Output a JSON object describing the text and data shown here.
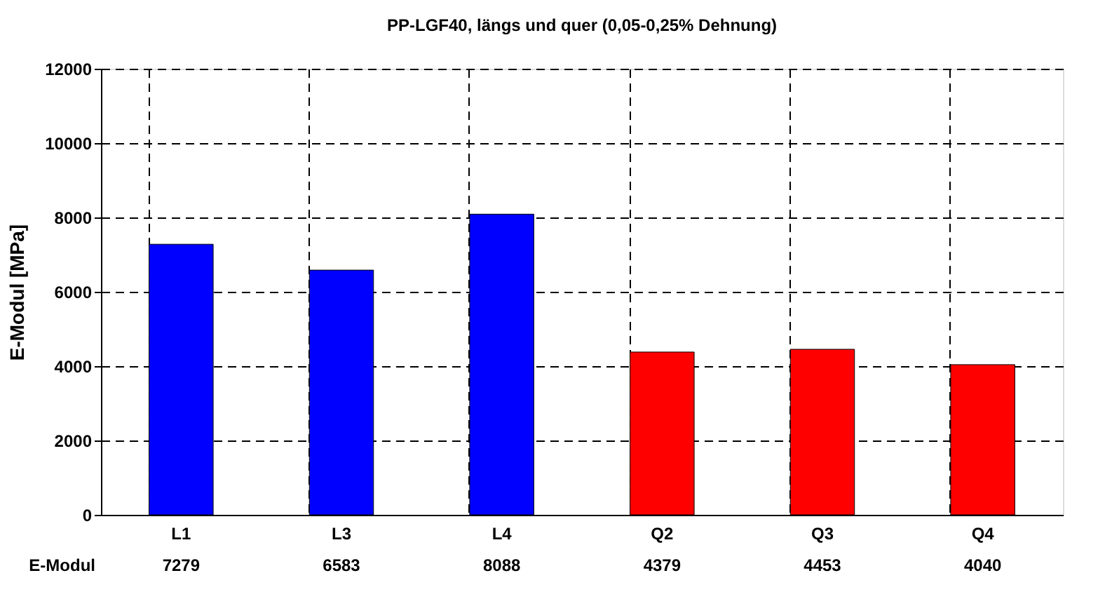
{
  "chart_data": {
    "type": "bar",
    "title": "PP-LGF40, längs und quer (0,05-0,25% Dehnung)",
    "ylabel": "E-Modul [MPa]",
    "categories": [
      "L1",
      "L3",
      "L4",
      "Q2",
      "Q3",
      "Q4"
    ],
    "series": [
      {
        "name": "E-Modul",
        "values": [
          7279,
          6583,
          8088,
          4379,
          4453,
          4040
        ],
        "colors": [
          "#0000ff",
          "#0000ff",
          "#0000ff",
          "#ff0000",
          "#ff0000",
          "#ff0000"
        ]
      }
    ],
    "ylim": [
      0,
      12000
    ],
    "yticks": [
      0,
      2000,
      4000,
      6000,
      8000,
      10000,
      12000
    ],
    "grid": true,
    "line_style": "dashed",
    "data_labels": true
  }
}
